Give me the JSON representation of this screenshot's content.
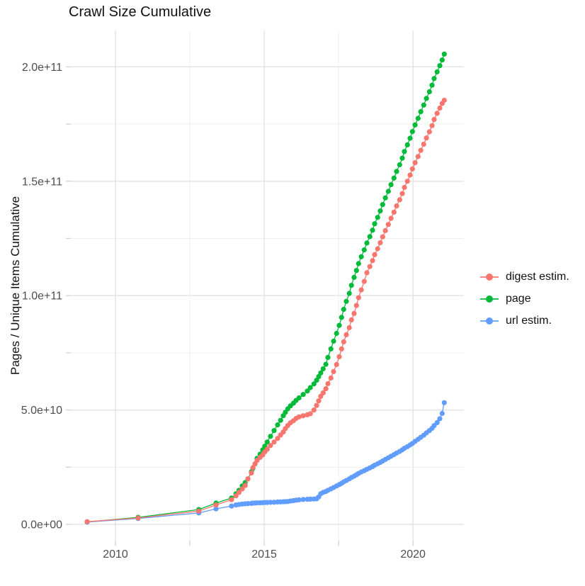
{
  "chart_data": {
    "type": "scatter",
    "title": "Crawl Size Cumulative",
    "xlabel": "",
    "ylabel": "Pages / Unique Items Cumulative",
    "legend_position": "right",
    "grid": "on",
    "value_unit": "1e9 (billions of pages / unique items)",
    "xlim": [
      2008.5,
      2021.71
    ],
    "ylim_billions": [
      -7.1,
      215.9
    ],
    "x_axis": {
      "ticks": [
        {
          "v": 2010,
          "label": "2010"
        },
        {
          "v": 2015,
          "label": "2015"
        },
        {
          "v": 2020,
          "label": "2020"
        }
      ],
      "minor": [
        2012.5,
        2017.5
      ]
    },
    "y_axis": {
      "ticks": [
        {
          "v": 0,
          "label": "0.0e+00"
        },
        {
          "v": 50,
          "label": "5.0e+10"
        },
        {
          "v": 100,
          "label": "1.0e+11"
        },
        {
          "v": 150,
          "label": "1.5e+11"
        },
        {
          "v": 200,
          "label": "2.0e+11"
        }
      ],
      "minor": [
        25,
        75,
        125,
        175
      ]
    },
    "x": [
      2009.05,
      2010.76,
      2012.8,
      2013.38,
      2013.9,
      2014.05,
      2014.15,
      2014.26,
      2014.36,
      2014.45,
      2014.57,
      2014.62,
      2014.69,
      2014.76,
      2014.86,
      2014.95,
      2015.02,
      2015.1,
      2015.21,
      2015.33,
      2015.45,
      2015.55,
      2015.64,
      2015.71,
      2015.79,
      2015.88,
      2015.98,
      2016.07,
      2016.17,
      2016.31,
      2016.45,
      2016.55,
      2016.67,
      2016.76,
      2016.83,
      2016.9,
      2016.98,
      2017.07,
      2017.14,
      2017.24,
      2017.33,
      2017.43,
      2017.52,
      2017.6,
      2017.67,
      2017.76,
      2017.86,
      2017.93,
      2018.02,
      2018.1,
      2018.17,
      2018.26,
      2018.36,
      2018.45,
      2018.55,
      2018.64,
      2018.71,
      2018.81,
      2018.9,
      2018.98,
      2019.07,
      2019.17,
      2019.26,
      2019.36,
      2019.45,
      2019.55,
      2019.64,
      2019.71,
      2019.81,
      2019.9,
      2019.98,
      2020.07,
      2020.17,
      2020.26,
      2020.36,
      2020.45,
      2020.55,
      2020.64,
      2020.71,
      2020.81,
      2020.9,
      2020.98,
      2021.05
    ],
    "draw_order": [
      1,
      2,
      0
    ],
    "series": [
      {
        "name": "digest estim.",
        "color": "#F8766D",
        "values_billions": [
          1.2,
          2.8,
          5.8,
          8.5,
          10.8,
          12.5,
          14.0,
          15.5,
          17.0,
          19.9,
          22.5,
          24.8,
          26.5,
          28.0,
          29.3,
          30.4,
          31.7,
          32.9,
          34.5,
          36.0,
          37.6,
          39.1,
          40.4,
          41.9,
          43.2,
          44.4,
          45.3,
          46.3,
          47.0,
          47.5,
          47.9,
          48.4,
          50.0,
          52.0,
          54.0,
          56.0,
          57.5,
          59.3,
          61.5,
          64.0,
          66.8,
          69.9,
          73.3,
          76.7,
          79.8,
          82.9,
          86.0,
          89.4,
          92.2,
          95.7,
          99.1,
          102.5,
          106.2,
          110.0,
          112.7,
          115.3,
          117.9,
          120.5,
          123.1,
          125.7,
          128.4,
          131.1,
          133.8,
          136.5,
          139.2,
          141.9,
          144.6,
          147.3,
          150.0,
          152.7,
          155.4,
          158.1,
          160.8,
          163.5,
          166.2,
          168.9,
          171.6,
          174.3,
          177.0,
          179.7,
          182.0,
          184.0,
          185.4
        ]
      },
      {
        "name": "page",
        "color": "#00BA38",
        "values_billions": [
          1.1,
          3.1,
          6.5,
          9.3,
          11.5,
          13.4,
          14.9,
          16.8,
          18.3,
          19.9,
          23.0,
          24.5,
          26.4,
          28.9,
          30.7,
          32.6,
          34.2,
          36.0,
          38.5,
          41.0,
          43.5,
          45.5,
          47.5,
          49.0,
          50.5,
          51.8,
          53.0,
          54.2,
          55.3,
          56.8,
          58.3,
          59.8,
          61.4,
          63.0,
          64.6,
          66.2,
          68.0,
          70.0,
          73.0,
          76.7,
          80.1,
          83.5,
          87.0,
          90.5,
          94.0,
          97.5,
          101.0,
          104.5,
          108.0,
          111.0,
          114.0,
          117.0,
          120.0,
          123.0,
          125.8,
          128.6,
          131.4,
          134.2,
          137.0,
          139.8,
          142.7,
          145.6,
          148.5,
          151.4,
          154.3,
          157.2,
          160.1,
          163.0,
          165.9,
          168.8,
          171.7,
          174.6,
          177.5,
          180.4,
          183.3,
          186.2,
          189.1,
          192.0,
          194.9,
          197.8,
          200.5,
          203.0,
          205.6
        ]
      },
      {
        "name": "url estim.",
        "color": "#619CFF",
        "values_billions": [
          1.0,
          2.6,
          5.0,
          6.8,
          8.0,
          8.5,
          8.7,
          8.9,
          9.0,
          9.1,
          9.2,
          9.3,
          9.35,
          9.4,
          9.45,
          9.5,
          9.55,
          9.6,
          9.65,
          9.7,
          9.8,
          9.85,
          9.9,
          9.95,
          10.0,
          10.2,
          10.4,
          10.6,
          10.75,
          10.9,
          11.0,
          11.05,
          11.1,
          11.2,
          12.0,
          13.4,
          14.0,
          14.4,
          14.9,
          15.5,
          16.1,
          16.8,
          17.4,
          18.0,
          18.6,
          19.2,
          19.9,
          20.5,
          21.1,
          21.7,
          22.3,
          22.9,
          23.5,
          24.1,
          24.7,
          25.3,
          25.9,
          26.5,
          27.1,
          27.7,
          28.4,
          29.1,
          29.8,
          30.5,
          31.2,
          31.9,
          32.6,
          33.3,
          34.0,
          34.7,
          35.4,
          36.3,
          37.2,
          38.1,
          39.0,
          40.0,
          41.0,
          42.0,
          43.2,
          44.5,
          46.2,
          48.5,
          53.2
        ]
      }
    ],
    "style": {
      "grid_major_color": "#E2E2E2",
      "grid_minor_color": "#EFEFEF",
      "tick_mark_color": "#D4D4D4",
      "tick_label_color": "#4D4D4D",
      "background": "#FFFFFF"
    }
  }
}
